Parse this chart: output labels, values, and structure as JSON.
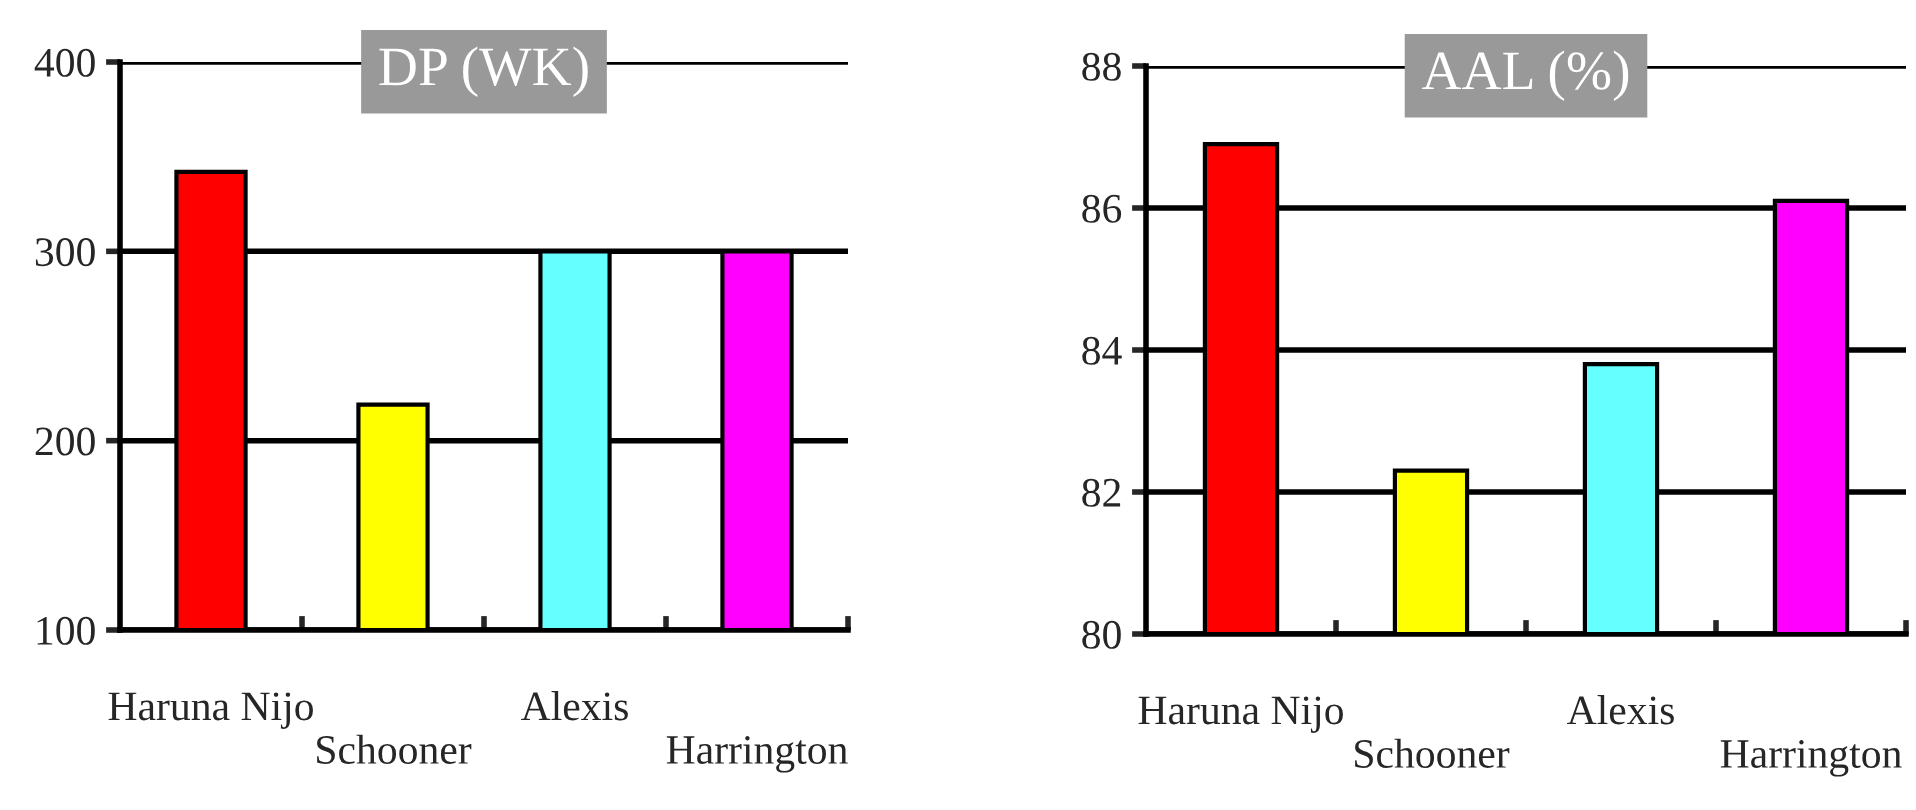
{
  "chart_data": [
    {
      "type": "bar",
      "title": "DP (WK)",
      "categories": [
        "Haruna Nijo",
        "Schooner",
        "Alexis",
        "Harrington"
      ],
      "values": [
        342,
        219,
        300,
        300
      ],
      "colors": [
        "#ff0000",
        "#ffff00",
        "#66ffff",
        "#ff00ff"
      ],
      "ylim": [
        100,
        400
      ],
      "yticks": [
        100,
        200,
        300,
        400
      ],
      "grid": "y",
      "legend": false
    },
    {
      "type": "bar",
      "title": "AAL (%)",
      "categories": [
        "Haruna Nijo",
        "Schooner",
        "Alexis",
        "Harrington"
      ],
      "values": [
        86.9,
        82.3,
        83.8,
        86.1
      ],
      "colors": [
        "#ff0000",
        "#ffff00",
        "#66ffff",
        "#ff00ff"
      ],
      "ylim": [
        80,
        88
      ],
      "yticks": [
        80,
        82,
        84,
        86,
        88
      ],
      "grid": "y",
      "legend": false
    }
  ]
}
